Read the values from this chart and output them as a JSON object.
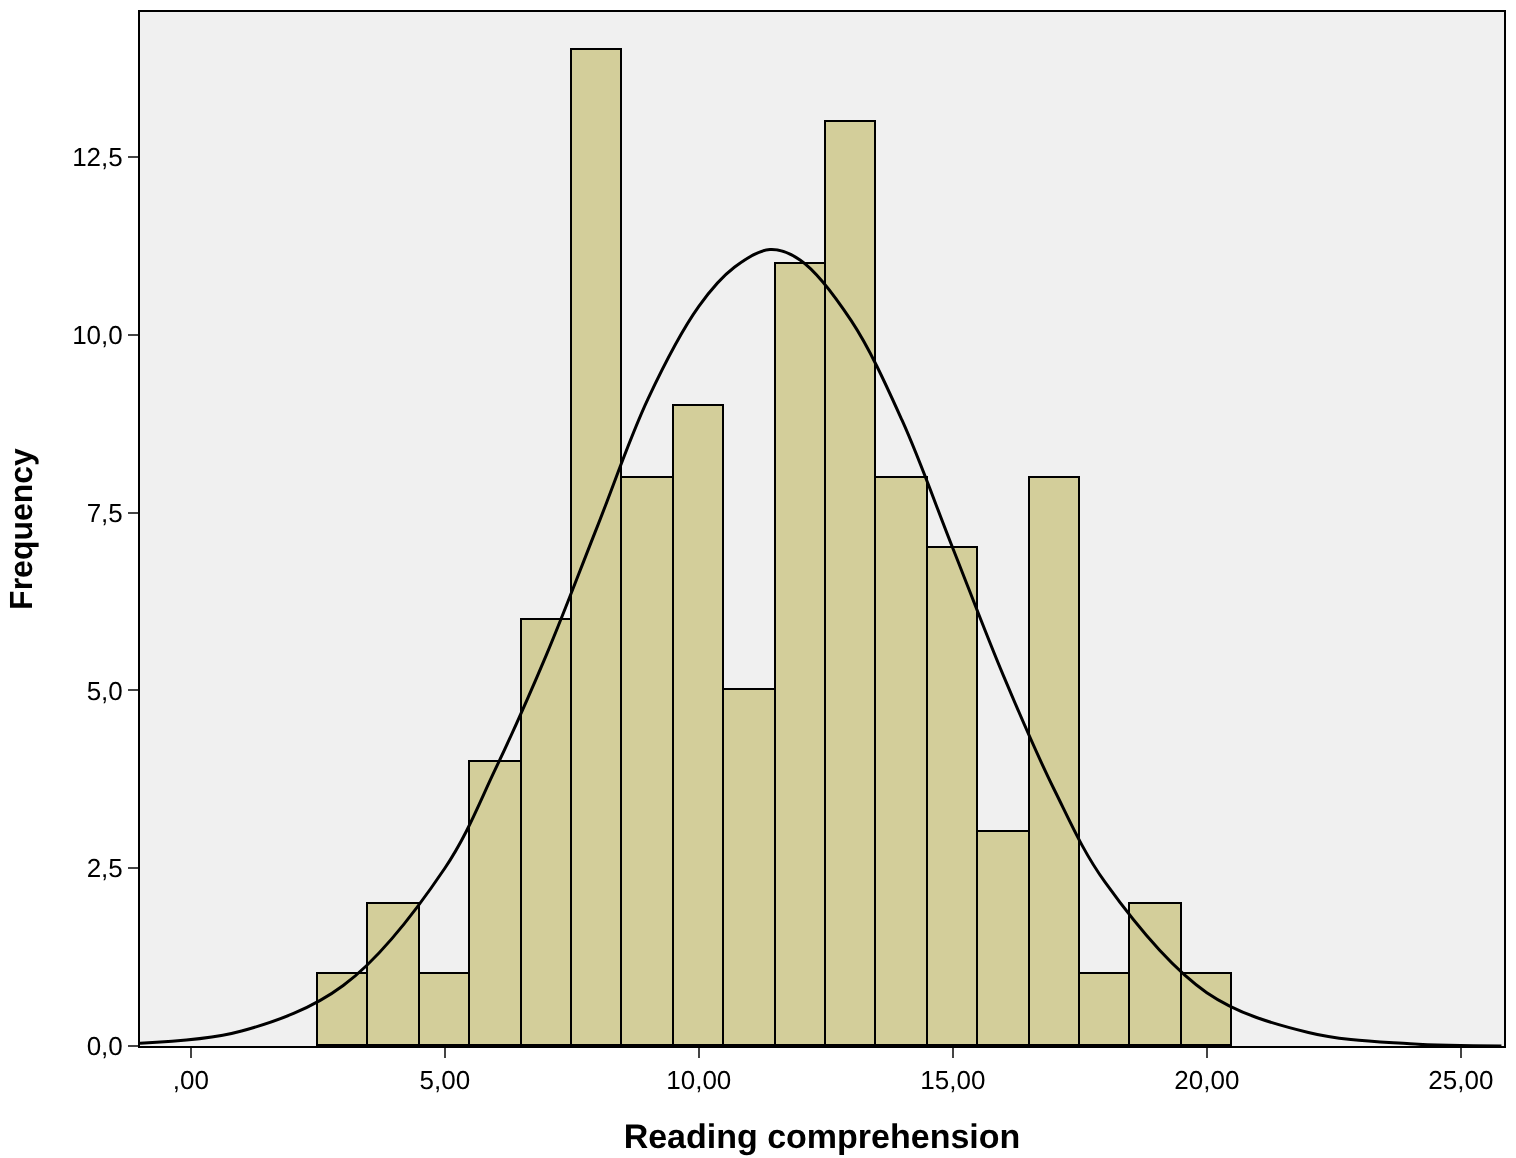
{
  "chart_data": {
    "type": "histogram",
    "xlabel": "Reading comprehension",
    "ylabel": "Frequency",
    "bins": [
      2.5,
      3.5,
      4.5,
      5.5,
      6.5,
      7.5,
      8.5,
      9.5,
      10.5,
      11.5,
      12.5,
      13.5,
      14.5,
      15.5,
      16.5,
      17.5,
      18.5,
      19.5,
      20.5
    ],
    "values": [
      1,
      2,
      1,
      4,
      6,
      14,
      8,
      9,
      5,
      11,
      13,
      8,
      7,
      3,
      8,
      1,
      2,
      1
    ],
    "color": "#d3ce9a",
    "series": [
      {
        "type": "line",
        "color": "#000000",
        "x": [
          -1,
          1,
          3,
          5,
          6,
          7,
          8,
          9,
          10,
          10.7,
          11.4,
          12,
          13,
          14,
          15,
          16,
          17,
          18,
          20,
          22,
          24,
          25.8
        ],
        "values": [
          0.04,
          0.21,
          0.85,
          2.5,
          3.9,
          5.5,
          7.3,
          9.1,
          10.4,
          10.95,
          11.2,
          11.05,
          10.2,
          8.8,
          7.0,
          5.2,
          3.6,
          2.3,
          0.75,
          0.19,
          0.03,
          0.0
        ]
      }
    ],
    "xlim": [
      -1.0,
      25.85
    ],
    "ylim": [
      0,
      14.54
    ],
    "xticks": [
      {
        "value": 0,
        "label": ",00"
      },
      {
        "value": 5,
        "label": "5,00"
      },
      {
        "value": 10,
        "label": "10,00"
      },
      {
        "value": 15,
        "label": "15,00"
      },
      {
        "value": 20,
        "label": "20,00"
      },
      {
        "value": 25,
        "label": "25,00"
      }
    ],
    "yticks": [
      {
        "value": 0,
        "label": "0,0"
      },
      {
        "value": 2.5,
        "label": "2,5"
      },
      {
        "value": 5,
        "label": "5,0"
      },
      {
        "value": 7.5,
        "label": "7,5"
      },
      {
        "value": 10,
        "label": "10,0"
      },
      {
        "value": 12.5,
        "label": "12,5"
      }
    ],
    "grid": false
  }
}
